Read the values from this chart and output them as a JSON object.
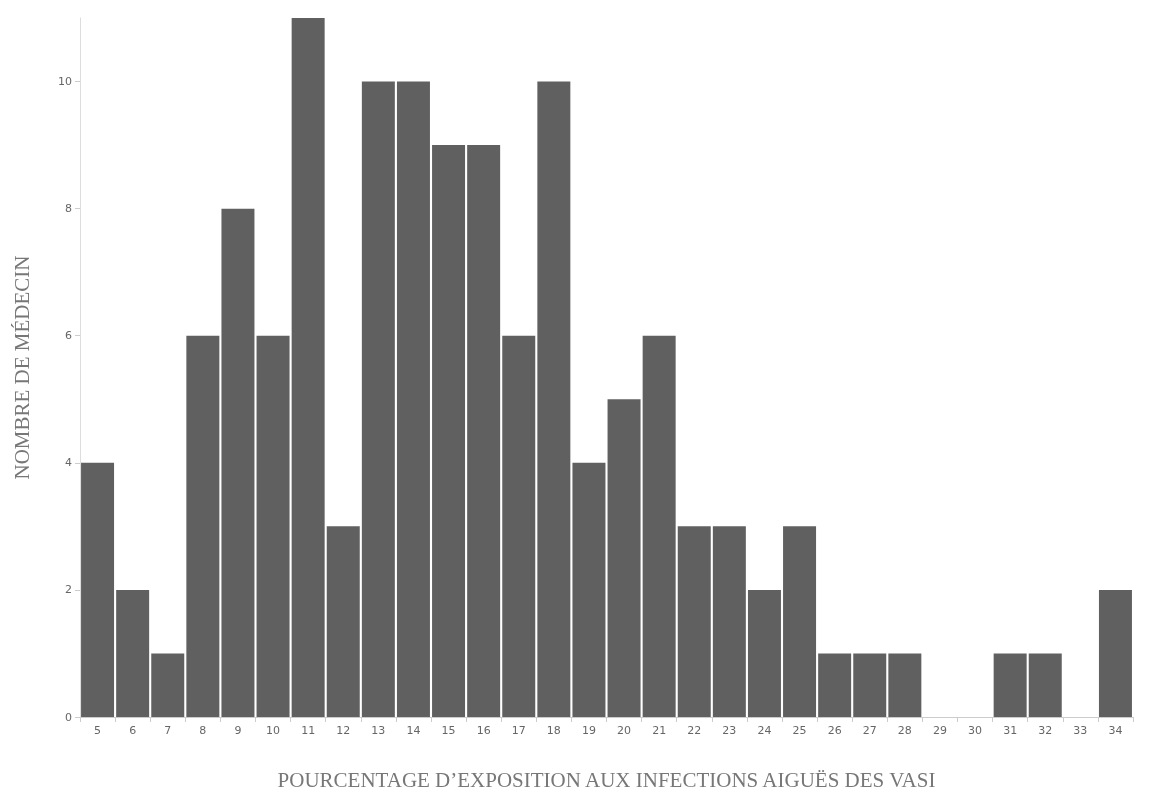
{
  "chart_data": {
    "type": "bar",
    "xlabel": "POURCENTAGE D’EXPOSITION AUX INFECTIONS AIGUËS DES VASI",
    "ylabel": "NOMBRE DE MÉDECIN",
    "categories": [
      "5",
      "6",
      "7",
      "8",
      "9",
      "10",
      "11",
      "12",
      "13",
      "14",
      "15",
      "16",
      "17",
      "18",
      "19",
      "20",
      "21",
      "22",
      "23",
      "24",
      "25",
      "26",
      "27",
      "28",
      "29",
      "30",
      "31",
      "32",
      "33",
      "34"
    ],
    "values": [
      4,
      2,
      1,
      6,
      8,
      6,
      11,
      3,
      10,
      10,
      9,
      9,
      6,
      10,
      4,
      5,
      6,
      3,
      3,
      2,
      3,
      1,
      1,
      1,
      0,
      0,
      1,
      1,
      0,
      2
    ],
    "color": "#606060",
    "ylim": [
      0,
      11
    ],
    "yticks": [
      0,
      2,
      4,
      6,
      8,
      10
    ],
    "grid": false
  }
}
